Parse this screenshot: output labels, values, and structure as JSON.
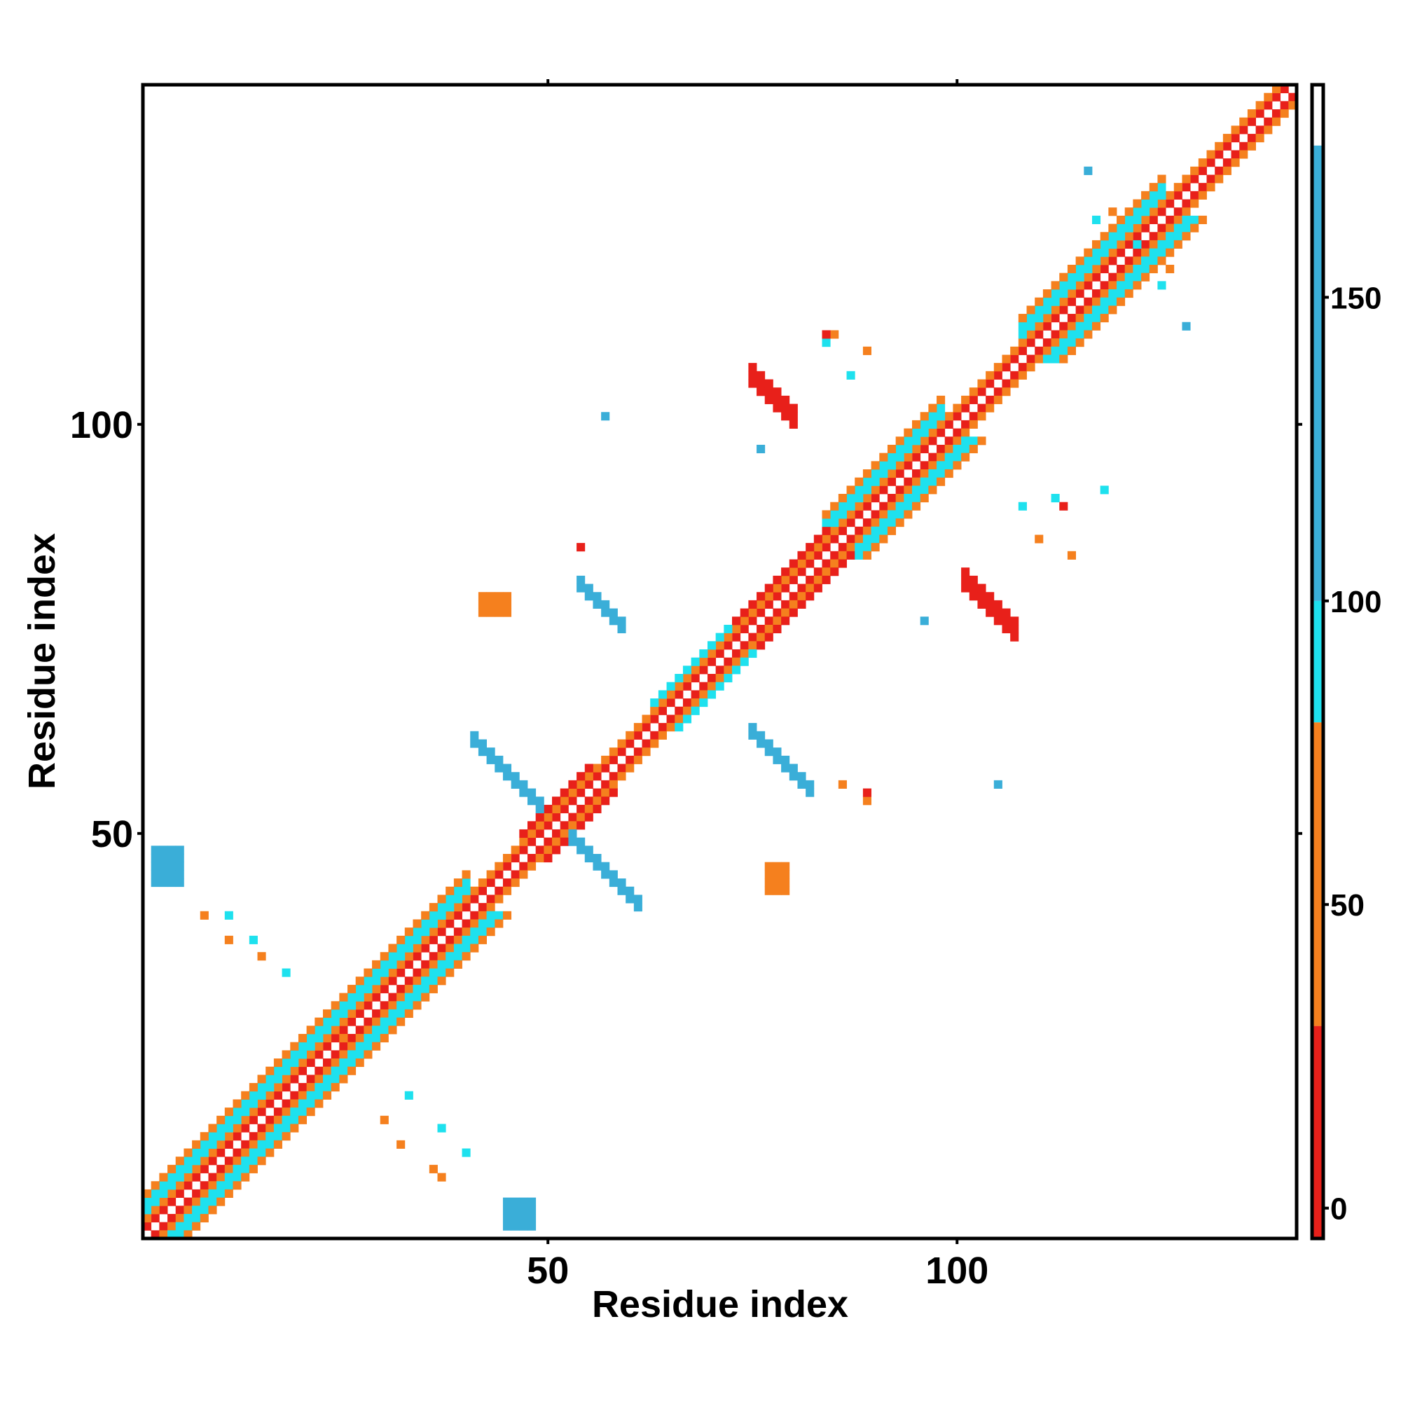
{
  "chart_data": {
    "type": "heatmap",
    "title": "",
    "xlabel": "Residue index",
    "ylabel": "Residue index",
    "xlim": [
      1,
      141
    ],
    "ylim": [
      1,
      141
    ],
    "x_ticks": [
      50,
      100
    ],
    "y_ticks": [
      50,
      100
    ],
    "x_tick_labels": [
      "50",
      "100"
    ],
    "y_tick_labels": [
      "50",
      "100"
    ],
    "colorbar": {
      "range": [
        -5,
        185
      ],
      "ticks": [
        0,
        50,
        100,
        150
      ],
      "tick_labels": [
        "0",
        "50",
        "100",
        "150"
      ],
      "bands": [
        {
          "from": -5,
          "to": 30,
          "color": "#e8201a"
        },
        {
          "from": 30,
          "to": 80,
          "color": "#f5801e"
        },
        {
          "from": 80,
          "to": 100,
          "color": "#1ee1ee"
        },
        {
          "from": 100,
          "to": 175,
          "color": "#3aaed8"
        },
        {
          "from": 175,
          "to": 185,
          "color": "#ffffff"
        }
      ]
    },
    "colors": {
      "red": "#e8201a",
      "orange": "#f5801e",
      "cyan": "#1ee1ee",
      "blue": "#3aaed8",
      "steel": "#4a8fc9"
    },
    "grid": false,
    "legend": "colorbar-right",
    "regions": [
      {
        "kind": "diag_band",
        "from": 1,
        "to": 141,
        "offset": 1,
        "value": 10
      },
      {
        "kind": "diag_band",
        "from": 1,
        "to": 141,
        "offset": 2,
        "value": 55
      },
      {
        "kind": "diag_band",
        "from": 1,
        "to": 40,
        "offset": 3,
        "value": 92
      },
      {
        "kind": "diag_band",
        "from": 1,
        "to": 40,
        "offset": 4,
        "value": 92
      },
      {
        "kind": "diag_band",
        "from": 1,
        "to": 40,
        "offset": 5,
        "value": 60
      },
      {
        "kind": "diag_band",
        "from": 84,
        "to": 98,
        "offset": 3,
        "value": 92
      },
      {
        "kind": "diag_band",
        "from": 84,
        "to": 98,
        "offset": 4,
        "value": 92
      },
      {
        "kind": "diag_band",
        "from": 84,
        "to": 98,
        "offset": 5,
        "value": 60
      },
      {
        "kind": "diag_band",
        "from": 108,
        "to": 125,
        "offset": 3,
        "value": 92
      },
      {
        "kind": "diag_band",
        "from": 108,
        "to": 125,
        "offset": 4,
        "value": 92
      },
      {
        "kind": "diag_band",
        "from": 108,
        "to": 125,
        "offset": 5,
        "value": 60
      },
      {
        "kind": "diag_band",
        "from": 63,
        "to": 73,
        "offset": 3,
        "value": 92
      },
      {
        "kind": "diag_band",
        "from": 73,
        "to": 84,
        "offset": 3,
        "value": 10
      },
      {
        "kind": "diag_band",
        "from": 47,
        "to": 55,
        "offset": 3,
        "value": 10
      },
      {
        "kind": "anti_band",
        "center": 51,
        "from": 41,
        "to": 61,
        "width": 2,
        "value": 160
      },
      {
        "kind": "diag_block",
        "x0": 75,
        "x1": 82,
        "y0": 55,
        "y1": 62,
        "width": 2,
        "value": 160
      },
      {
        "kind": "diag_block",
        "x0": 54,
        "x1": 59,
        "y0": 75,
        "y1": 80,
        "width": 2,
        "value": 160
      },
      {
        "kind": "diag_block",
        "x0": 75,
        "x1": 80,
        "y0": 100,
        "y1": 105,
        "width": 3,
        "value": 15
      },
      {
        "kind": "diag_block",
        "x0": 101,
        "x1": 107,
        "y0": 74,
        "y1": 80,
        "width": 3,
        "value": 15
      },
      {
        "kind": "rect",
        "x0": 2,
        "x1": 5,
        "y0": 44,
        "y1": 48,
        "value": 160
      },
      {
        "kind": "rect",
        "x0": 45,
        "x1": 48,
        "y0": 2,
        "y1": 5,
        "value": 160
      },
      {
        "kind": "rect",
        "x0": 77,
        "x1": 79,
        "y0": 43,
        "y1": 46,
        "value": 40
      },
      {
        "kind": "rect",
        "x0": 42,
        "x1": 45,
        "y0": 77,
        "y1": 79,
        "value": 40
      },
      {
        "kind": "points",
        "value": 40,
        "cells": [
          [
            8,
            40
          ],
          [
            11,
            37
          ],
          [
            15,
            35
          ],
          [
            25,
            25
          ],
          [
            30,
            15
          ],
          [
            32,
            12
          ],
          [
            36,
            9
          ],
          [
            37,
            8
          ],
          [
            126,
            119
          ],
          [
            119,
            126
          ],
          [
            86,
            56
          ],
          [
            89,
            54
          ],
          [
            110,
            86
          ],
          [
            114,
            84
          ],
          [
            89,
            109
          ],
          [
            85,
            111
          ]
        ]
      },
      {
        "kind": "points",
        "value": 92,
        "cells": [
          [
            11,
            40
          ],
          [
            14,
            37
          ],
          [
            18,
            33
          ],
          [
            33,
            18
          ],
          [
            37,
            14
          ],
          [
            40,
            11
          ],
          [
            117,
            125
          ],
          [
            122,
            122
          ],
          [
            125,
            117
          ],
          [
            84,
            110
          ],
          [
            87,
            106
          ],
          [
            118,
            92
          ],
          [
            112,
            91
          ],
          [
            108,
            90
          ]
        ]
      },
      {
        "kind": "points",
        "value": 120,
        "cells": [
          [
            57,
            101
          ],
          [
            76,
            97
          ],
          [
            96,
            76
          ],
          [
            105,
            56
          ],
          [
            128,
            112
          ],
          [
            116,
            131
          ]
        ]
      },
      {
        "kind": "points",
        "value": 10,
        "cells": [
          [
            89,
            55
          ],
          [
            54,
            85
          ],
          [
            84,
            111
          ],
          [
            113,
            90
          ]
        ]
      }
    ]
  }
}
